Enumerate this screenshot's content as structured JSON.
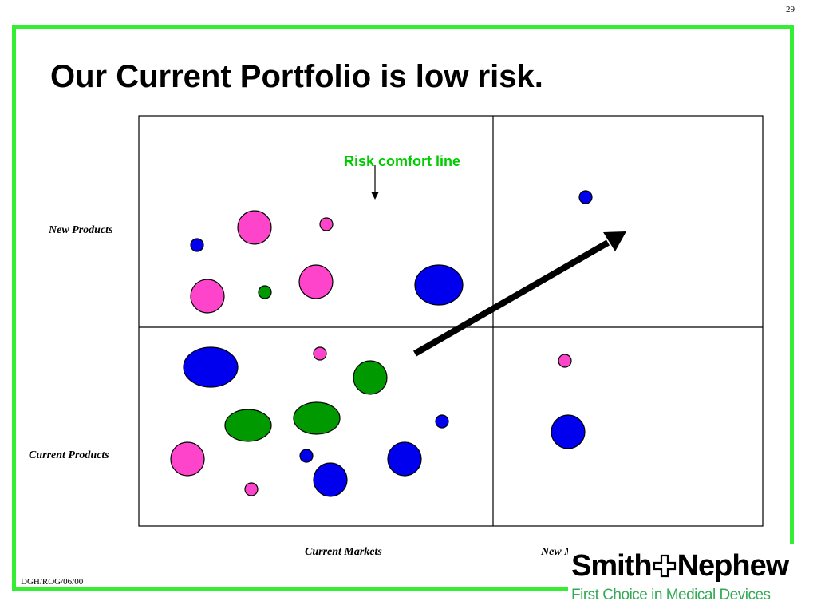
{
  "slide": {
    "page_number": "29",
    "title": "Our Current Portfolio is low risk.",
    "footer_code": "DGH/ROG/06/00"
  },
  "matrix": {
    "rows": [
      "New Products",
      "Current Products"
    ],
    "columns": [
      "Current Markets",
      "New Markets"
    ],
    "risk_line_label": "Risk comfort line"
  },
  "bubble_colors": {
    "pink": "#ff44cc",
    "blue": "#0000ee",
    "green": "#009900"
  },
  "colors": {
    "frame": "#33ee33",
    "risk_label": "#00cc00",
    "logo_tagline": "#33aa55"
  },
  "logo": {
    "name_start": "Smith",
    "name_end": "Nephew",
    "cross_icon": "cross-icon",
    "tagline": "First Choice in Medical Devices"
  }
}
